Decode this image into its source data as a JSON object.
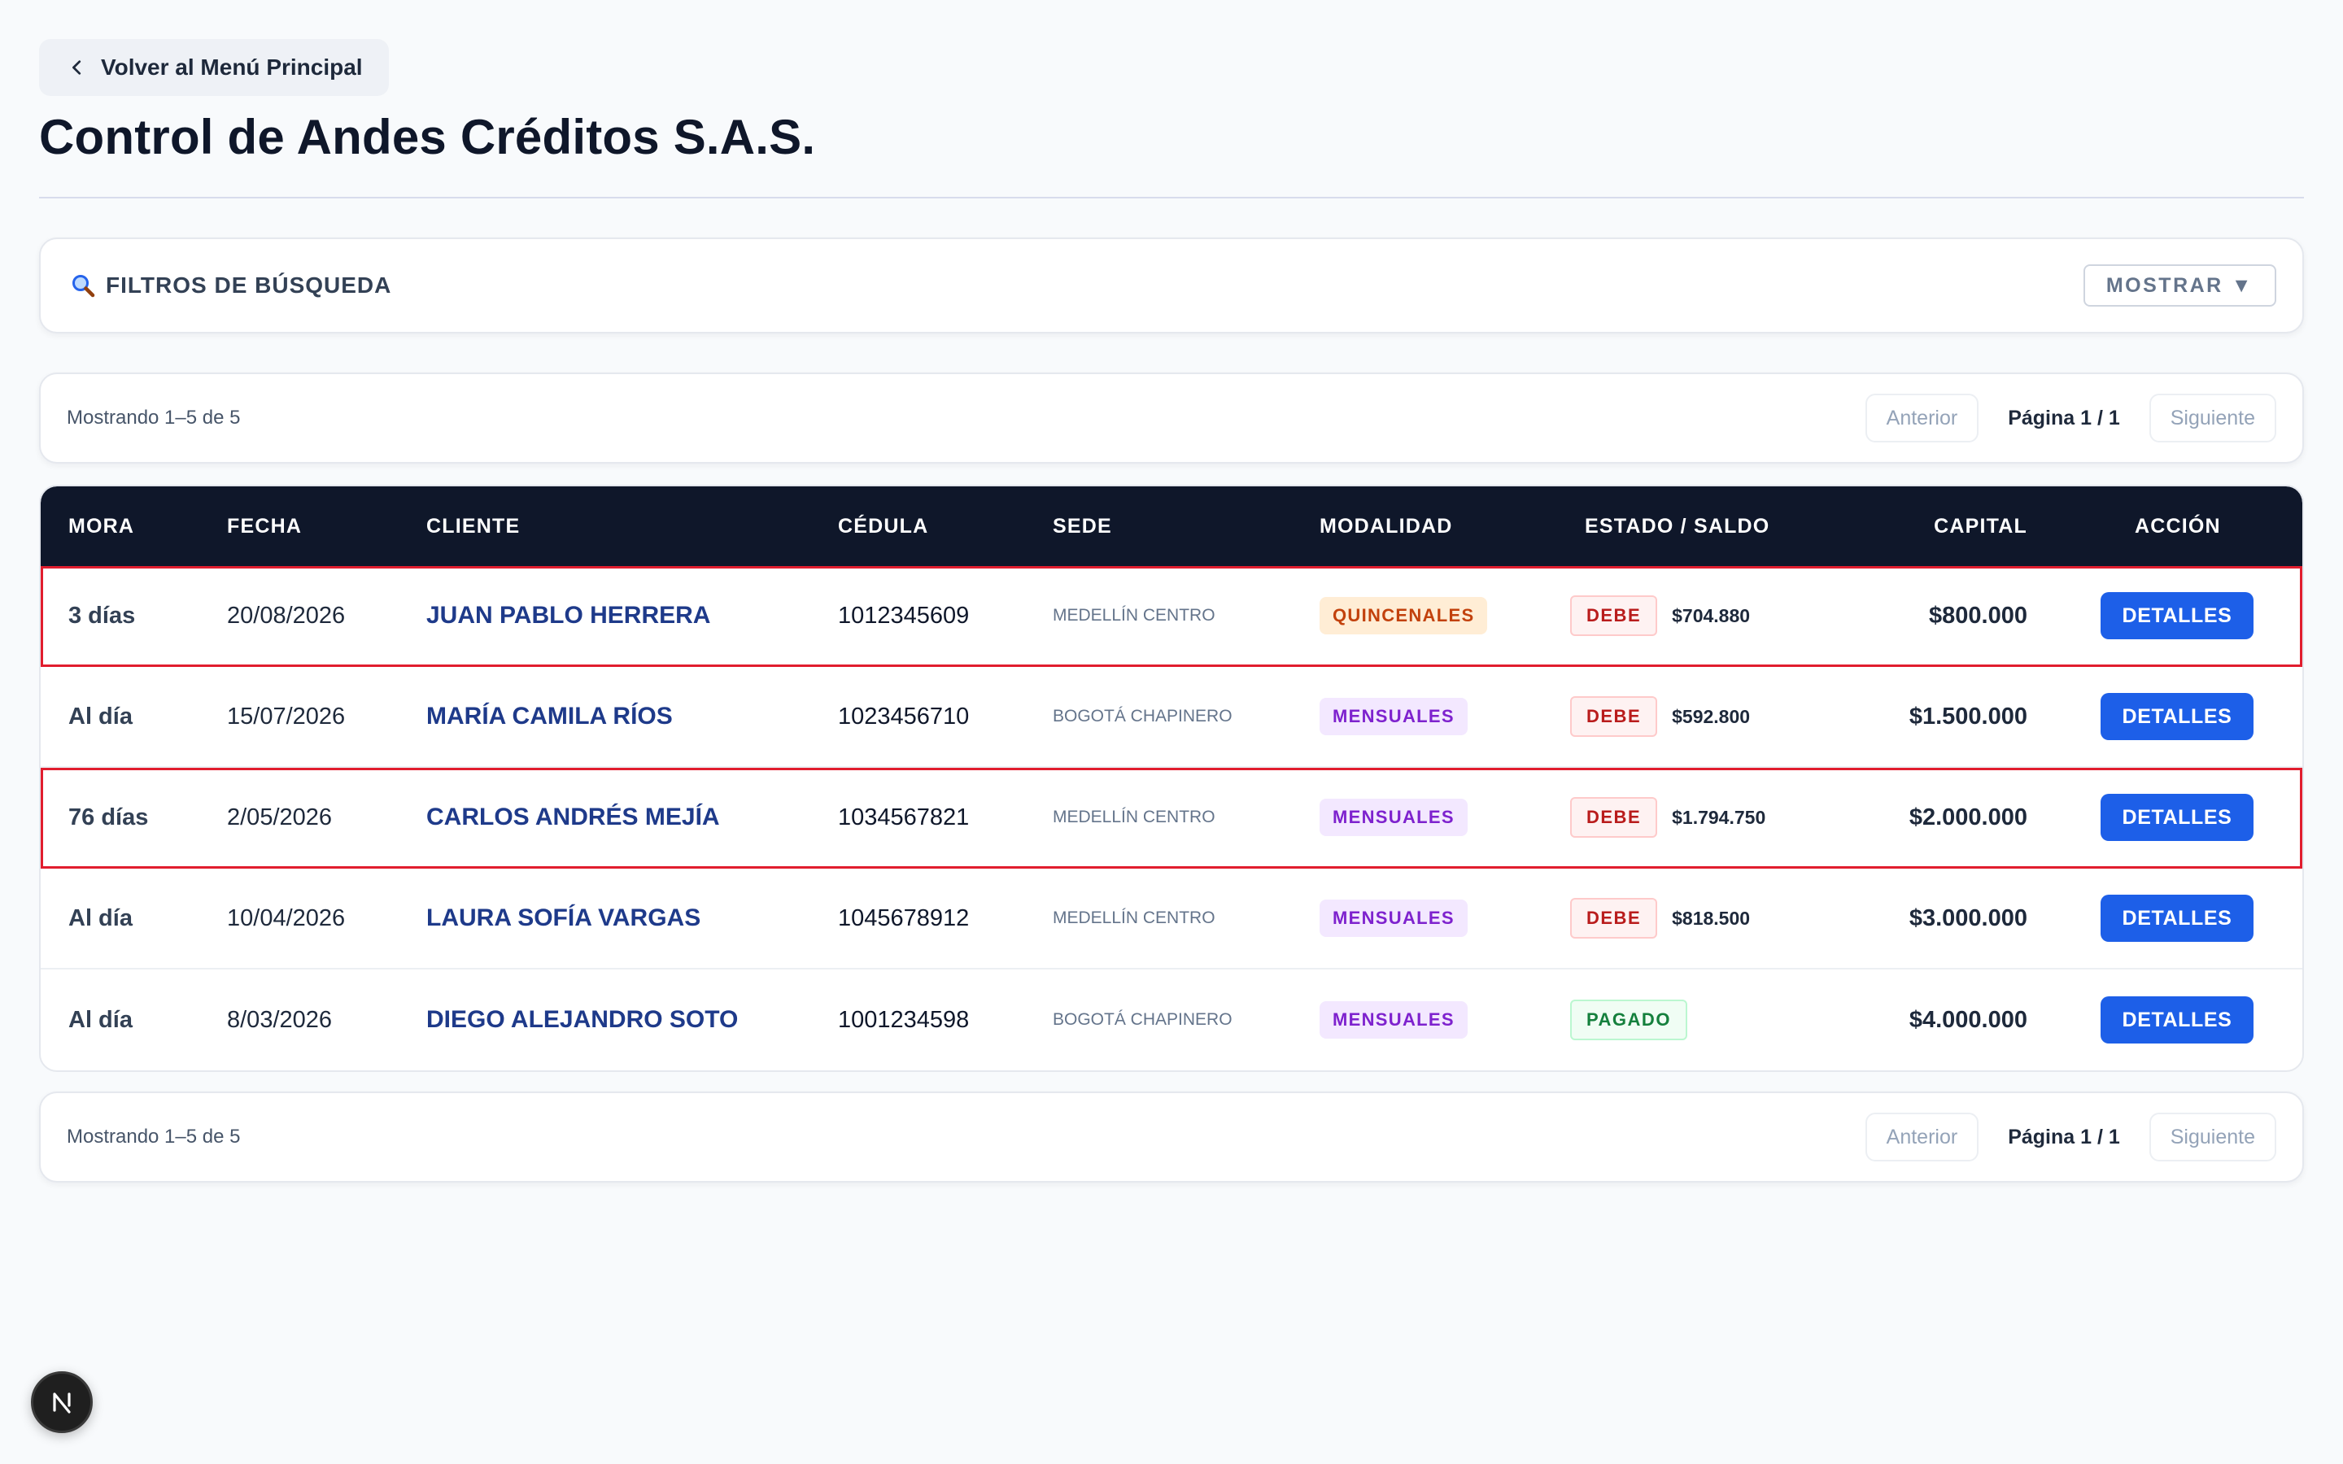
{
  "back_button": {
    "label": "Volver al Menú Principal"
  },
  "page": {
    "title": "Control de Andes Créditos S.A.S."
  },
  "filters": {
    "title": "FILTROS DE BÚSQUEDA",
    "toggle_label": "MOSTRAR",
    "toggle_arrow": "▼"
  },
  "pagination": {
    "count_text": "Mostrando 1–5 de 5",
    "prev_label": "Anterior",
    "page_label": "Página 1 / 1",
    "next_label": "Siguiente"
  },
  "table": {
    "headers": [
      "MORA",
      "FECHA",
      "CLIENTE",
      "CÉDULA",
      "SEDE",
      "MODALIDAD",
      "ESTADO / SALDO",
      "CAPITAL",
      "ACCIÓN"
    ],
    "rows": [
      {
        "mora": "3 días",
        "fecha": "20/08/2026",
        "cliente": "JUAN PABLO HERRERA",
        "cedula": "1012345609",
        "sede": "MEDELLÍN CENTRO",
        "modalidad": "QUINCENALES",
        "estado": "DEBE",
        "saldo": "$704.880",
        "capital": "$800.000",
        "accion": "DETALLES"
      },
      {
        "mora": "Al día",
        "fecha": "15/07/2026",
        "cliente": "MARÍA CAMILA RÍOS",
        "cedula": "1023456710",
        "sede": "BOGOTÁ CHAPINERO",
        "modalidad": "MENSUALES",
        "estado": "DEBE",
        "saldo": "$592.800",
        "capital": "$1.500.000",
        "accion": "DETALLES"
      },
      {
        "mora": "76 días",
        "fecha": "2/05/2026",
        "cliente": "CARLOS ANDRÉS MEJÍA",
        "cedula": "1034567821",
        "sede": "MEDELLÍN CENTRO",
        "modalidad": "MENSUALES",
        "estado": "DEBE",
        "saldo": "$1.794.750",
        "capital": "$2.000.000",
        "accion": "DETALLES"
      },
      {
        "mora": "Al día",
        "fecha": "10/04/2026",
        "cliente": "LAURA SOFÍA VARGAS",
        "cedula": "1045678912",
        "sede": "MEDELLÍN CENTRO",
        "modalidad": "MENSUALES",
        "estado": "DEBE",
        "saldo": "$818.500",
        "capital": "$3.000.000",
        "accion": "DETALLES"
      },
      {
        "mora": "Al día",
        "fecha": "8/03/2026",
        "cliente": "DIEGO ALEJANDRO SOTO",
        "cedula": "1001234598",
        "sede": "BOGOTÁ CHAPINERO",
        "modalidad": "MENSUALES",
        "estado": "PAGADO",
        "saldo": "",
        "capital": "$4.000.000",
        "accion": "DETALLES"
      }
    ]
  },
  "dev_badge": {
    "letter": "N"
  },
  "colors": {
    "header_bg": "#0f172a",
    "accent_blue": "#1d5fe8",
    "client_blue": "#1e3a8a",
    "overdue_outline": "#e11d2e",
    "debe_red": "#b91c1c",
    "pagado_green": "#15803d",
    "quincenal_orange": "#c2410c",
    "mensual_purple": "#7e22ce"
  },
  "icons": {
    "back": "chevron-left-icon",
    "filters": "magnifier-icon",
    "dev": "next-logo-icon"
  }
}
